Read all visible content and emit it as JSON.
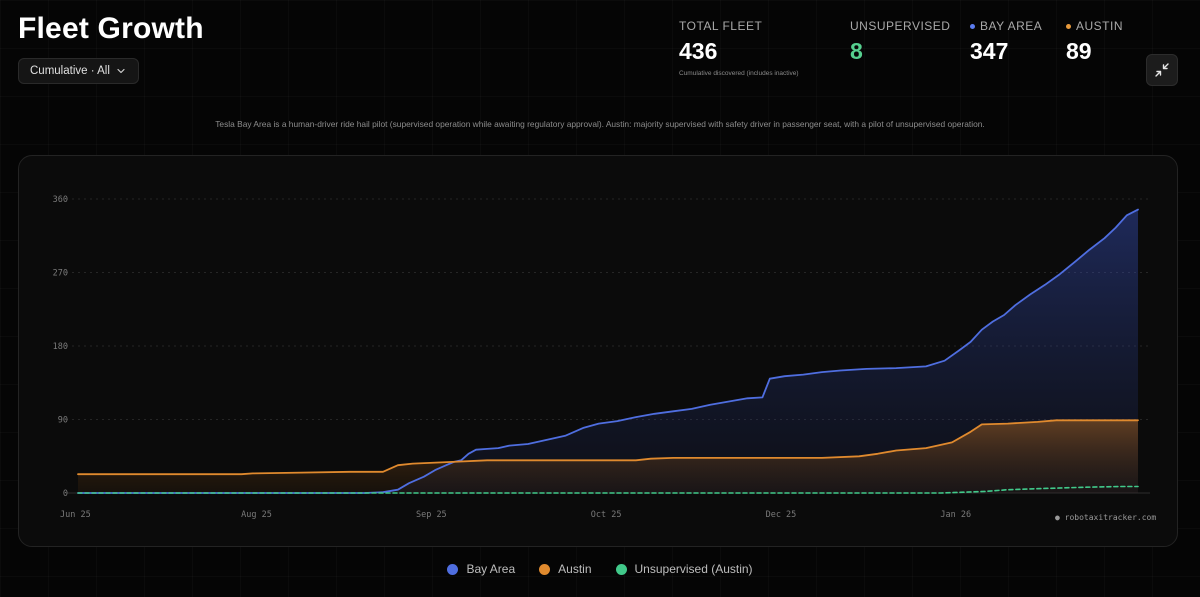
{
  "header": {
    "title": "Fleet Growth",
    "filter_label": "Cumulative · All"
  },
  "stats": {
    "total": {
      "label": "TOTAL FLEET",
      "value": "436",
      "note": "Cumulative discovered (includes inactive)"
    },
    "unsupervised": {
      "label": "UNSUPERVISED",
      "value": "8"
    },
    "bay_area": {
      "label": "BAY AREA",
      "value": "347"
    },
    "austin": {
      "label": "AUSTIN",
      "value": "89"
    }
  },
  "description": "Tesla Bay Area is a human-driver ride hail pilot (supervised operation while awaiting regulatory approval). Austin: majority supervised with safety driver in passenger seat, with a pilot of unsupervised operation.",
  "watermark": "robotaxitracker.com",
  "icons": {
    "collapse": "collapse-icon",
    "dropdown": "chevron-down-icon"
  },
  "colors": {
    "bay_area": "#4f6ee0",
    "austin": "#e08a2e",
    "unsupervised": "#41c98a",
    "accent_green": "#56d08f"
  },
  "chart_data": {
    "type": "area",
    "title": "",
    "xlabel": "",
    "ylabel": "",
    "ylim": [
      0,
      360
    ],
    "yticks": [
      0,
      90,
      180,
      270,
      360
    ],
    "x_ticks": [
      {
        "label": "Jun 25",
        "day": 0
      },
      {
        "label": "Aug 25",
        "day": 48
      },
      {
        "label": "Sep 25",
        "day": 95
      },
      {
        "label": "Oct 25",
        "day": 142
      },
      {
        "label": "Dec 25",
        "day": 189
      },
      {
        "label": "Jan 26",
        "day": 236
      }
    ],
    "x_range_days": [
      0,
      285
    ],
    "legend": [
      "Bay Area",
      "Austin",
      "Unsupervised (Austin)"
    ],
    "legend_position": "bottom-center",
    "series": [
      {
        "name": "Bay Area",
        "key": "bay_area",
        "style": "solid-area",
        "points": [
          [
            0,
            0
          ],
          [
            77,
            0
          ],
          [
            82,
            1
          ],
          [
            86,
            4
          ],
          [
            89,
            12
          ],
          [
            93,
            20
          ],
          [
            96,
            28
          ],
          [
            99,
            34
          ],
          [
            101,
            38
          ],
          [
            103,
            40
          ],
          [
            105,
            48
          ],
          [
            107,
            53
          ],
          [
            110,
            54
          ],
          [
            113,
            55
          ],
          [
            116,
            58
          ],
          [
            121,
            60
          ],
          [
            126,
            65
          ],
          [
            131,
            70
          ],
          [
            136,
            80
          ],
          [
            140,
            85
          ],
          [
            145,
            88
          ],
          [
            150,
            93
          ],
          [
            155,
            97
          ],
          [
            160,
            100
          ],
          [
            165,
            103
          ],
          [
            170,
            108
          ],
          [
            175,
            112
          ],
          [
            180,
            116
          ],
          [
            184,
            117
          ],
          [
            186,
            140
          ],
          [
            190,
            143
          ],
          [
            195,
            145
          ],
          [
            200,
            148
          ],
          [
            205,
            150
          ],
          [
            212,
            152
          ],
          [
            220,
            153
          ],
          [
            228,
            155
          ],
          [
            233,
            162
          ],
          [
            237,
            175
          ],
          [
            240,
            185
          ],
          [
            243,
            200
          ],
          [
            246,
            210
          ],
          [
            249,
            218
          ],
          [
            252,
            230
          ],
          [
            256,
            243
          ],
          [
            260,
            255
          ],
          [
            264,
            268
          ],
          [
            268,
            283
          ],
          [
            272,
            298
          ],
          [
            276,
            312
          ],
          [
            279,
            325
          ],
          [
            282,
            340
          ],
          [
            285,
            347
          ]
        ]
      },
      {
        "name": "Austin",
        "key": "austin",
        "style": "solid-area",
        "points": [
          [
            0,
            23
          ],
          [
            44,
            23
          ],
          [
            47,
            24
          ],
          [
            60,
            25
          ],
          [
            73,
            26
          ],
          [
            82,
            26
          ],
          [
            86,
            34
          ],
          [
            90,
            36
          ],
          [
            100,
            38
          ],
          [
            110,
            40
          ],
          [
            140,
            40
          ],
          [
            150,
            40
          ],
          [
            154,
            42
          ],
          [
            160,
            43
          ],
          [
            175,
            43
          ],
          [
            200,
            43
          ],
          [
            210,
            45
          ],
          [
            215,
            48
          ],
          [
            220,
            52
          ],
          [
            228,
            55
          ],
          [
            235,
            62
          ],
          [
            240,
            75
          ],
          [
            243,
            84
          ],
          [
            250,
            85
          ],
          [
            258,
            87
          ],
          [
            263,
            89
          ],
          [
            285,
            89
          ]
        ]
      },
      {
        "name": "Unsupervised (Austin)",
        "key": "unsupervised",
        "style": "dashed-line",
        "points": [
          [
            0,
            0
          ],
          [
            232,
            0
          ],
          [
            238,
            1
          ],
          [
            244,
            2
          ],
          [
            250,
            4
          ],
          [
            256,
            5
          ],
          [
            263,
            6
          ],
          [
            270,
            7
          ],
          [
            280,
            8
          ],
          [
            285,
            8
          ]
        ]
      }
    ]
  }
}
